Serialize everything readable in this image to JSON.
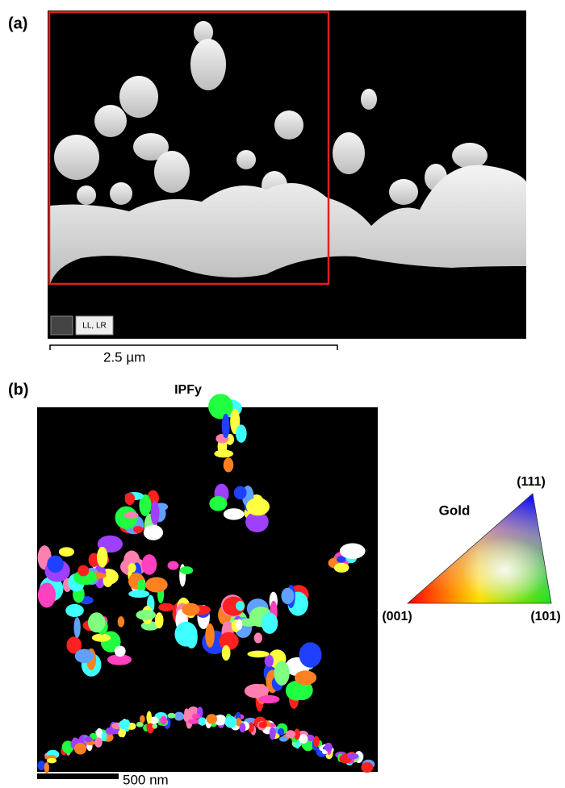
{
  "panel_a": {
    "label": "(a)",
    "toolbar": "LL, LR",
    "scale_bar": "2.5 µm"
  },
  "panel_b": {
    "label": "(b)",
    "title": "IPFy",
    "scale_bar": "500 nm"
  },
  "legend": {
    "material": "Gold",
    "top": "(111)",
    "left": "(001)",
    "right": "(101)"
  }
}
